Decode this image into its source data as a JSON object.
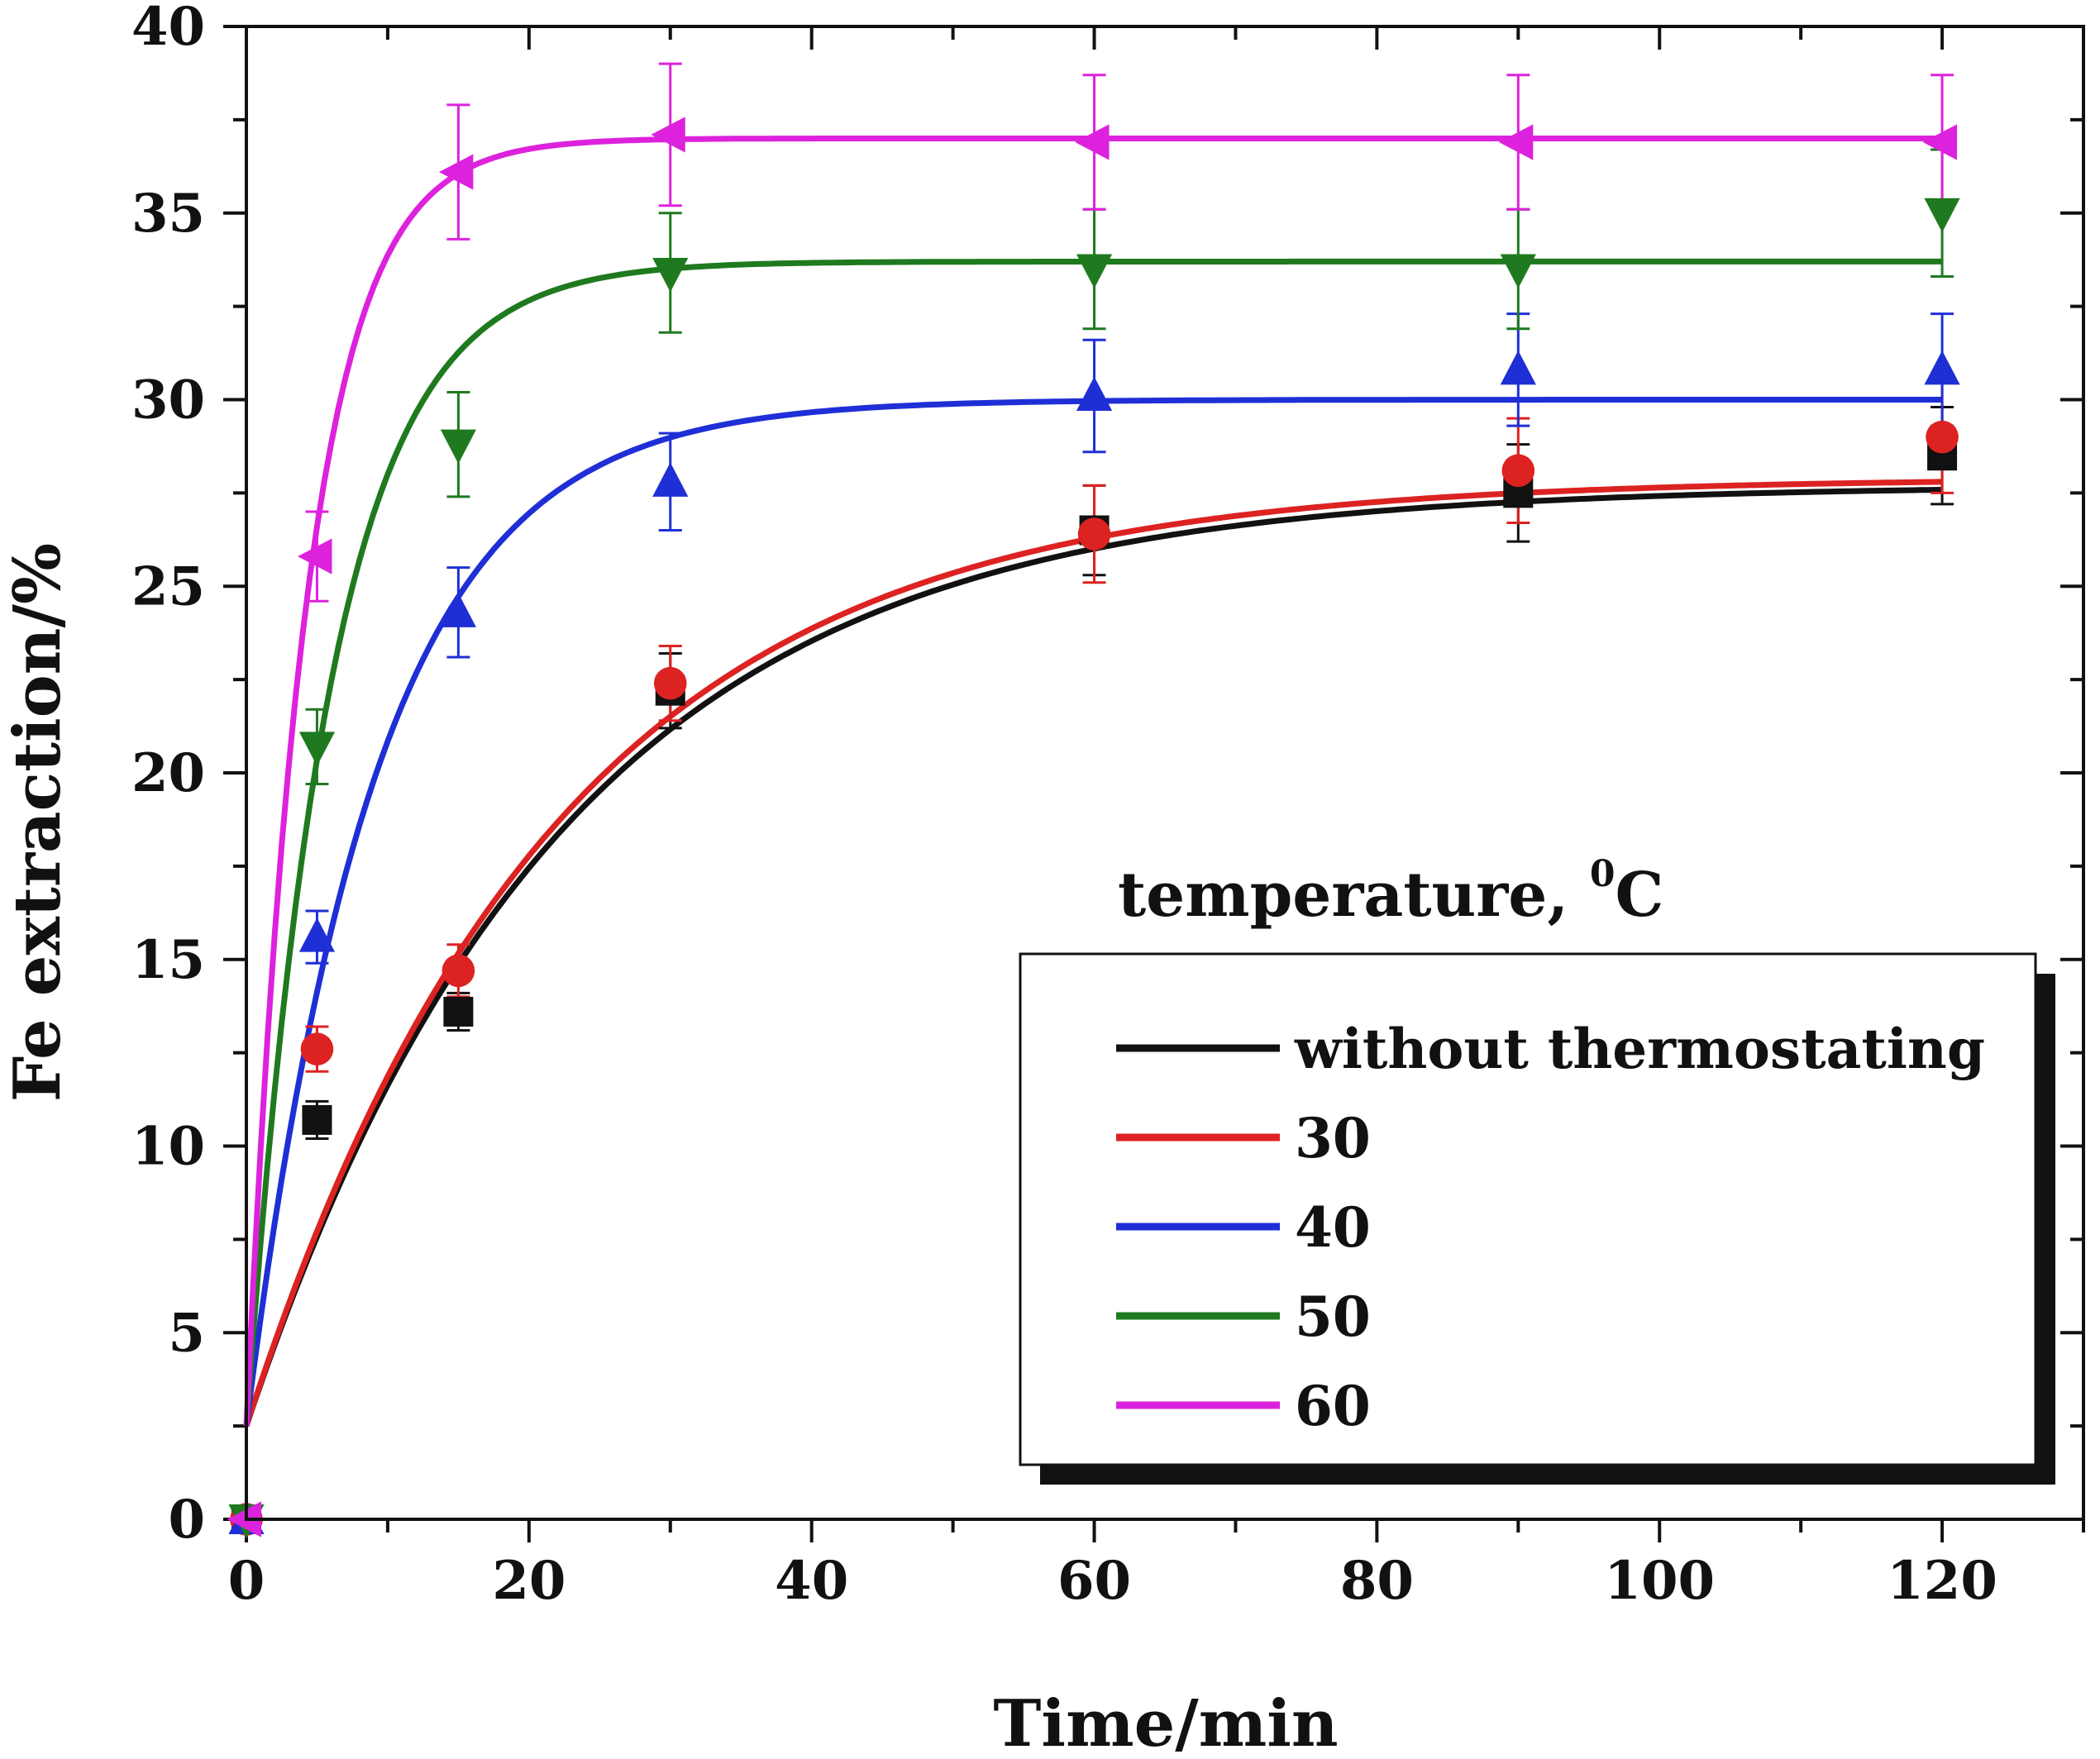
{
  "chart_data": {
    "type": "scatter",
    "title": "",
    "xlabel": "Time/min",
    "ylabel": "Fe extraction/%",
    "xlim": [
      0,
      130
    ],
    "ylim": [
      0,
      40
    ],
    "xticks": [
      0,
      20,
      40,
      60,
      80,
      100,
      120
    ],
    "yticks": [
      0,
      5,
      10,
      15,
      20,
      25,
      30,
      35,
      40
    ],
    "xtick_labels": [
      "0",
      "20",
      "40",
      "60",
      "80",
      "100",
      "120"
    ],
    "ytick_labels": [
      "0",
      "5",
      "10",
      "15",
      "20",
      "25",
      "30",
      "35",
      "40"
    ],
    "legend": {
      "title": "temperature, ",
      "title_sup": "0",
      "title_unit": "C",
      "placement": "bottom-right"
    },
    "series": [
      {
        "name": "without thermostating",
        "color": "#111111",
        "marker": "square",
        "points": [
          [
            0,
            0
          ],
          [
            5,
            10.7
          ],
          [
            15,
            13.6
          ],
          [
            30,
            22.2
          ],
          [
            60,
            26.5
          ],
          [
            90,
            27.5
          ],
          [
            120,
            28.5
          ]
        ],
        "errors": [
          0,
          0.5,
          0.5,
          1.0,
          1.2,
          1.3,
          1.3
        ],
        "fit": {
          "a": 27.7,
          "k": 0.045,
          "c": 2.5
        }
      },
      {
        "name": "30",
        "color": "#dd2222",
        "marker": "circle",
        "points": [
          [
            0,
            0
          ],
          [
            5,
            12.6
          ],
          [
            15,
            14.7
          ],
          [
            30,
            22.4
          ],
          [
            60,
            26.4
          ],
          [
            90,
            28.1
          ],
          [
            120,
            29.0
          ]
        ],
        "errors": [
          0,
          0.6,
          0.7,
          1.0,
          1.3,
          1.4,
          1.5
        ],
        "fit": {
          "a": 27.9,
          "k": 0.046,
          "c": 2.5
        }
      },
      {
        "name": "40",
        "color": "#1f2fd6",
        "marker": "triangle-up",
        "points": [
          [
            0,
            0
          ],
          [
            5,
            15.6
          ],
          [
            15,
            24.3
          ],
          [
            30,
            27.8
          ],
          [
            60,
            30.1
          ],
          [
            90,
            30.8
          ],
          [
            120,
            30.8
          ]
        ],
        "errors": [
          0,
          0.7,
          1.2,
          1.3,
          1.5,
          1.5,
          1.5
        ],
        "fit": {
          "a": 30.0,
          "k": 0.11,
          "c": 2.5
        }
      },
      {
        "name": "50",
        "color": "#1f7a1f",
        "marker": "triangle-down",
        "points": [
          [
            0,
            0
          ],
          [
            5,
            20.7
          ],
          [
            15,
            28.8
          ],
          [
            30,
            33.4
          ],
          [
            60,
            33.5
          ],
          [
            90,
            33.5
          ],
          [
            120,
            35.0
          ]
        ],
        "errors": [
          0,
          1.0,
          1.4,
          1.6,
          1.6,
          1.6,
          1.7
        ],
        "fit": {
          "a": 33.7,
          "k": 0.17,
          "c": 2.5
        }
      },
      {
        "name": "60",
        "color": "#dd22dd",
        "marker": "triangle-left",
        "points": [
          [
            0,
            0
          ],
          [
            5,
            25.8
          ],
          [
            15,
            36.1
          ],
          [
            30,
            37.1
          ],
          [
            60,
            36.9
          ],
          [
            90,
            36.9
          ],
          [
            120,
            36.9
          ]
        ],
        "errors": [
          0,
          1.2,
          1.8,
          1.9,
          1.8,
          1.8,
          1.8
        ],
        "fit": {
          "a": 37.0,
          "k": 0.24,
          "c": 2.5
        }
      }
    ]
  }
}
